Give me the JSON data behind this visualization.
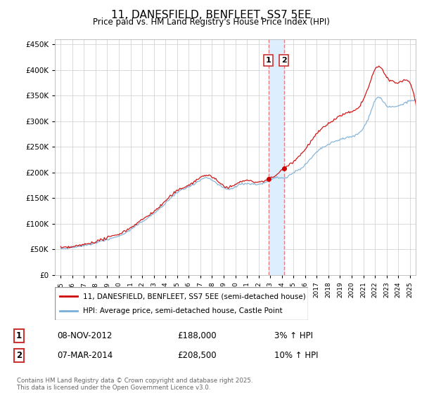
{
  "title": "11, DANESFIELD, BENFLEET, SS7 5EE",
  "subtitle": "Price paid vs. HM Land Registry's House Price Index (HPI)",
  "legend_line1": "11, DANESFIELD, BENFLEET, SS7 5EE (semi-detached house)",
  "legend_line2": "HPI: Average price, semi-detached house, Castle Point",
  "transaction1_date": "08-NOV-2012",
  "transaction1_price": "£188,000",
  "transaction1_hpi": "3% ↑ HPI",
  "transaction2_date": "07-MAR-2014",
  "transaction2_price": "£208,500",
  "transaction2_hpi": "10% ↑ HPI",
  "price_line_color": "#cc0000",
  "hpi_line_color": "#7aaed6",
  "transaction1_x": 2012.85,
  "transaction2_x": 2014.17,
  "transaction1_y": 188000,
  "transaction2_y": 208500,
  "vline_color": "#e88080",
  "highlight_color": "#ddeeff",
  "ylim": [
    0,
    460000
  ],
  "xlim_start": 1994.5,
  "xlim_end": 2025.5,
  "footer": "Contains HM Land Registry data © Crown copyright and database right 2025.\nThis data is licensed under the Open Government Licence v3.0.",
  "background_color": "#ffffff",
  "grid_color": "#cccccc"
}
